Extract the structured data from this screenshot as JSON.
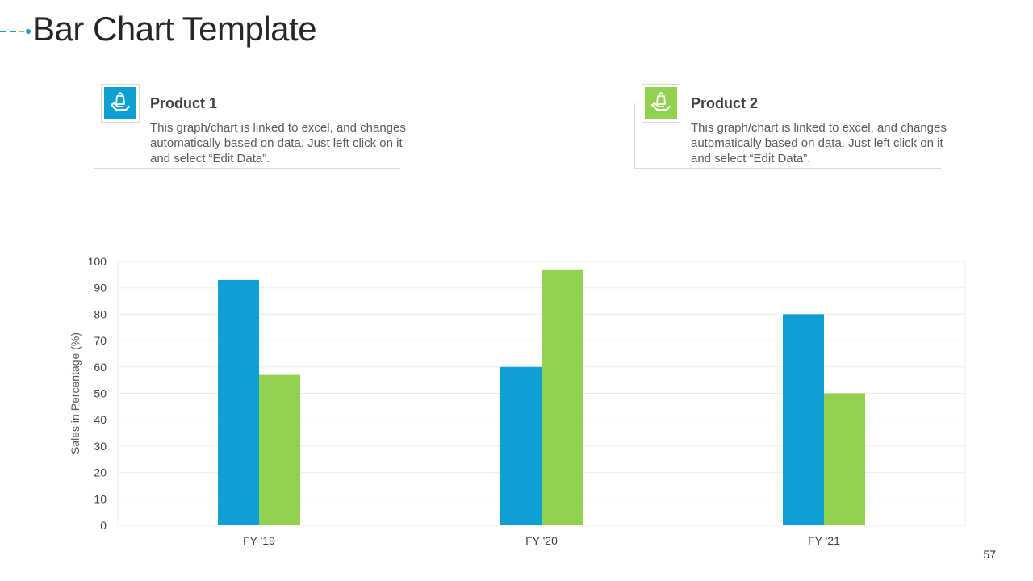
{
  "slide": {
    "title": "Bar Chart Template",
    "page_number": "57"
  },
  "cards": [
    {
      "title": "Product 1",
      "description": "This graph/chart is linked to excel, and changes automatically based on data. Just left click on it and select “Edit Data”.",
      "color": "#0ea0d5",
      "icon": "hand-holding-bag-icon"
    },
    {
      "title": "Product 2",
      "description": "This graph/chart is linked to excel, and changes automatically based on data. Just left click on it and select “Edit Data”.",
      "color": "#92d050",
      "icon": "hand-holding-bag-icon"
    }
  ],
  "chart_data": {
    "type": "bar",
    "categories": [
      "FY '19",
      "FY '20",
      "FY '21"
    ],
    "series": [
      {
        "values": [
          93,
          60,
          80
        ],
        "color": "#0ea0d5"
      },
      {
        "values": [
          57,
          97,
          50
        ],
        "color": "#92d050"
      }
    ],
    "title": "",
    "xlabel": "",
    "ylabel": "Sales in Percentage (%)",
    "ylim": [
      0,
      100
    ],
    "yticks": [
      0,
      10,
      20,
      30,
      40,
      50,
      60,
      70,
      80,
      90,
      100
    ],
    "grid": true,
    "legend": "none"
  }
}
